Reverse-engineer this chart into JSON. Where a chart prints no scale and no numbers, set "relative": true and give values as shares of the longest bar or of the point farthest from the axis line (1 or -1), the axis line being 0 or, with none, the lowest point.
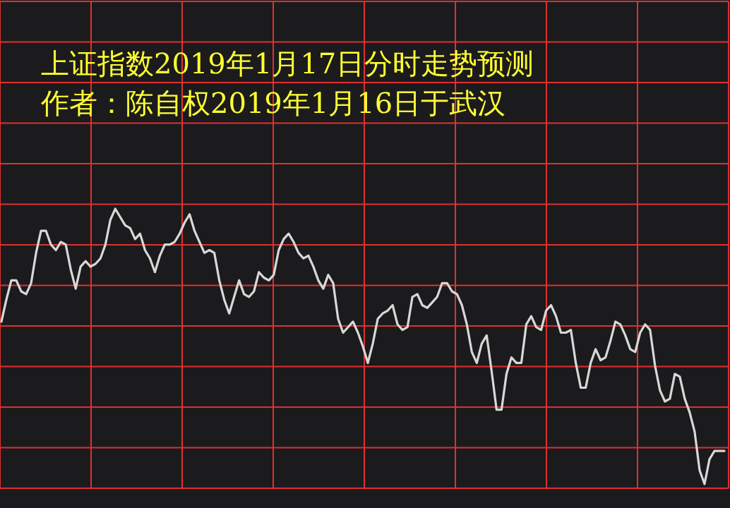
{
  "chart_data": {
    "type": "line",
    "title": "上证指数2019年1月17日分时走势预测",
    "subtitle": "作者：陈自权2019年1月16日于武汉",
    "relative": true,
    "grid": true,
    "marker": "none",
    "line_style": "solid",
    "categories": [
      null,
      null,
      null,
      null,
      null,
      null,
      null,
      null,
      null,
      null,
      null,
      null,
      null,
      null,
      null,
      null,
      null,
      null,
      null,
      null,
      null,
      null,
      null,
      null,
      null,
      null,
      null,
      null,
      null,
      null,
      null,
      null,
      null,
      null,
      null,
      null,
      null,
      null,
      null,
      null,
      null,
      null,
      null,
      null,
      null,
      null,
      null,
      null,
      null,
      null,
      null,
      null,
      null,
      null,
      null,
      null,
      null,
      null,
      null,
      null,
      null,
      null,
      null,
      null,
      null,
      null,
      null,
      null,
      null,
      null,
      null,
      null,
      null,
      null,
      null,
      null,
      null,
      null,
      null,
      null,
      null,
      null,
      null,
      null,
      null,
      null,
      null,
      null,
      null,
      null,
      null,
      null,
      null,
      null,
      null,
      null,
      null,
      null,
      null,
      null,
      null,
      null,
      null,
      null,
      null,
      null,
      null,
      null,
      null,
      null,
      null,
      null,
      null,
      null,
      null,
      null,
      null,
      null,
      null,
      null,
      null,
      null,
      null,
      null,
      null,
      null,
      null,
      null,
      null,
      null,
      null,
      null,
      null,
      null,
      null,
      null,
      null,
      null,
      null,
      null,
      null,
      null,
      null,
      null,
      null,
      null,
      null
    ],
    "series": [
      {
        "color": "#d8d8d8",
        "values": [
          0.59,
          0.67,
          0.74,
          0.74,
          0.7,
          0.69,
          0.73,
          0.84,
          0.92,
          0.92,
          0.87,
          0.85,
          0.88,
          0.87,
          0.78,
          0.71,
          0.79,
          0.81,
          0.79,
          0.8,
          0.82,
          0.87,
          0.96,
          1.0,
          0.97,
          0.94,
          0.93,
          0.89,
          0.91,
          0.85,
          0.82,
          0.77,
          0.83,
          0.87,
          0.87,
          0.88,
          0.91,
          0.95,
          0.98,
          0.92,
          0.88,
          0.84,
          0.85,
          0.84,
          0.74,
          0.67,
          0.62,
          0.68,
          0.74,
          0.69,
          0.68,
          0.7,
          0.77,
          0.75,
          0.74,
          0.76,
          0.85,
          0.89,
          0.91,
          0.88,
          0.84,
          0.82,
          0.83,
          0.79,
          0.74,
          0.71,
          0.76,
          0.73,
          0.6,
          0.55,
          0.57,
          0.59,
          0.55,
          0.5,
          0.44,
          0.51,
          0.6,
          0.62,
          0.63,
          0.65,
          0.58,
          0.56,
          0.57,
          0.68,
          0.69,
          0.65,
          0.64,
          0.66,
          0.68,
          0.73,
          0.73,
          0.7,
          0.69,
          0.65,
          0.58,
          0.48,
          0.44,
          0.51,
          0.54,
          0.41,
          0.27,
          0.27,
          0.4,
          0.46,
          0.44,
          0.44,
          0.58,
          0.61,
          0.57,
          0.56,
          0.63,
          0.65,
          0.61,
          0.55,
          0.55,
          0.56,
          0.44,
          0.35,
          0.35,
          0.44,
          0.49,
          0.45,
          0.46,
          0.52,
          0.59,
          0.58,
          0.54,
          0.49,
          0.48,
          0.55,
          0.58,
          0.56,
          0.43,
          0.34,
          0.3,
          0.31,
          0.4,
          0.39,
          0.31,
          0.26,
          0.19,
          0.05,
          0,
          0.09,
          0.12,
          0.12,
          0.12
        ]
      }
    ]
  }
}
